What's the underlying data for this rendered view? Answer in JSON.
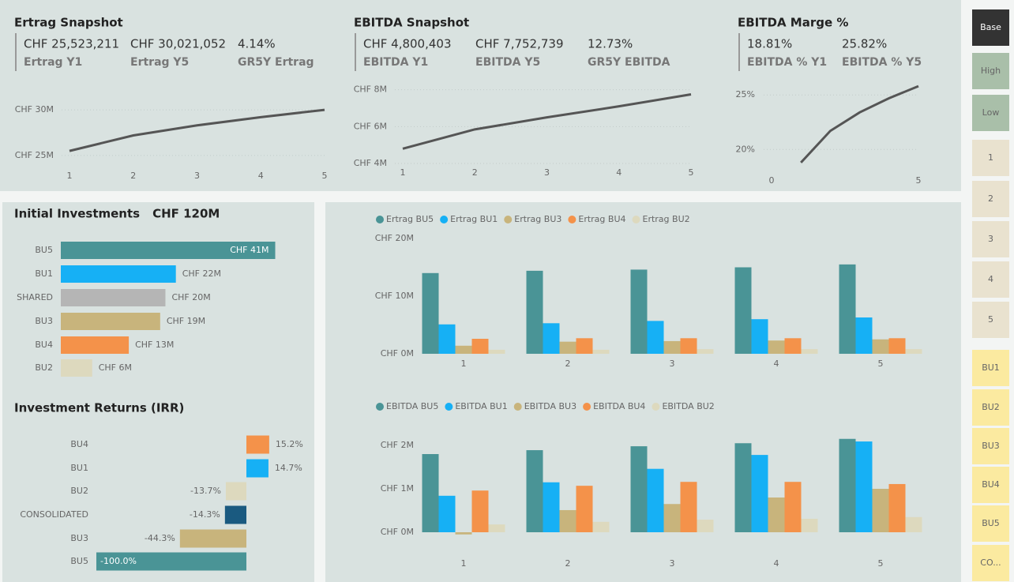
{
  "kpi_cards": [
    {
      "title": "Ertrag Snapshot",
      "items": [
        {
          "value": "CHF 25,523,211",
          "label": "Ertrag Y1"
        },
        {
          "value": "CHF 30,021,052",
          "label": "Ertrag Y5"
        },
        {
          "value": "4.14%",
          "label": "GR5Y Ertrag"
        }
      ]
    },
    {
      "title": "EBITDA Snapshot",
      "items": [
        {
          "value": "CHF 4,800,403",
          "label": "EBITDA Y1"
        },
        {
          "value": "CHF 7,752,739",
          "label": "EBITDA Y5"
        },
        {
          "value": "12.73%",
          "label": "GR5Y EBITDA"
        }
      ]
    },
    {
      "title": "EBITDA Marge %",
      "items": [
        {
          "value": "18.81%",
          "label": "EBITDA % Y1"
        },
        {
          "value": "25.82%",
          "label": "EBITDA % Y5"
        }
      ]
    }
  ],
  "chart_data": [
    {
      "type": "line",
      "x": [
        1,
        2,
        3,
        4,
        5
      ],
      "values": [
        25.5,
        27.2,
        28.3,
        29.2,
        30.0
      ],
      "color": "#555555",
      "xlim": [
        1,
        5
      ],
      "xticks": [
        1,
        2,
        3,
        4,
        5
      ],
      "ylim": [
        24.3,
        32
      ],
      "yticks": [
        {
          "value": 25,
          "label": "CHF 25M"
        },
        {
          "value": 30,
          "label": "CHF 30M"
        }
      ],
      "grid": true
    },
    {
      "type": "line",
      "x": [
        1,
        2,
        3,
        4,
        5
      ],
      "values": [
        4.8,
        5.85,
        6.5,
        7.1,
        7.75
      ],
      "color": "#555555",
      "xlim": [
        1,
        5
      ],
      "xticks": [
        1,
        2,
        3,
        4,
        5
      ],
      "ylim": [
        4,
        8.2
      ],
      "yticks": [
        {
          "value": 4,
          "label": "CHF 4M"
        },
        {
          "value": 6,
          "label": "CHF 6M"
        },
        {
          "value": 8,
          "label": "CHF 8M"
        }
      ],
      "grid": true
    },
    {
      "type": "line",
      "x": [
        1,
        2,
        3,
        4,
        5
      ],
      "values": [
        18.8,
        21.7,
        23.4,
        24.7,
        25.8
      ],
      "color": "#555555",
      "xlim": [
        0,
        5
      ],
      "xticks": [
        0,
        5
      ],
      "ylim": [
        18.5,
        26.1
      ],
      "yticks": [
        {
          "value": 20,
          "label": "20%"
        },
        {
          "value": 25,
          "label": "25%"
        }
      ],
      "grid": true
    },
    {
      "type": "hbar",
      "title": "Initial Investments",
      "subtitle": "CHF 120M",
      "categories": [
        "BU5",
        "BU1",
        "SHARED",
        "BU3",
        "BU4",
        "BU2"
      ],
      "values": [
        41,
        22,
        20,
        19,
        13,
        6
      ],
      "value_labels": [
        "CHF 41M",
        "CHF 22M",
        "CHF 20M",
        "CHF 19M",
        "CHF 13M",
        "CHF 6M"
      ],
      "colors": [
        "#4a9496",
        "#16b0f5",
        "#b5b5b5",
        "#c8b47c",
        "#f4924a",
        "#ddd9be"
      ],
      "xlim": [
        0,
        45
      ]
    },
    {
      "type": "hbar",
      "title": "Investment Returns (IRR)",
      "categories": [
        "BU4",
        "BU1",
        "BU2",
        "CONSOLIDATED",
        "BU3",
        "BU5"
      ],
      "values": [
        15.2,
        14.7,
        -13.7,
        -14.3,
        -44.3,
        -100
      ],
      "value_labels": [
        "15.2%",
        "14.7%",
        "-13.7%",
        "-14.3%",
        "-44.3%",
        "-100.0%"
      ],
      "colors": [
        "#f4924a",
        "#16b0f5",
        "#ddd9be",
        "#1a5a80",
        "#c8b47c",
        "#4a9496"
      ],
      "xlim": [
        -100,
        20
      ]
    },
    {
      "type": "bar",
      "categories": [
        "1",
        "2",
        "3",
        "4",
        "5"
      ],
      "series": [
        {
          "name": "Ertrag BU5",
          "color": "#4a9496",
          "values": [
            14.0,
            14.4,
            14.6,
            15.0,
            15.5
          ]
        },
        {
          "name": "Ertrag BU1",
          "color": "#16b0f5",
          "values": [
            5.1,
            5.3,
            5.7,
            6.0,
            6.3
          ]
        },
        {
          "name": "Ertrag BU3",
          "color": "#c8b47c",
          "values": [
            1.4,
            2.1,
            2.2,
            2.3,
            2.5
          ]
        },
        {
          "name": "Ertrag BU4",
          "color": "#f4924a",
          "values": [
            2.6,
            2.7,
            2.7,
            2.7,
            2.7
          ]
        },
        {
          "name": "Ertrag BU2",
          "color": "#ddd9be",
          "values": [
            0.7,
            0.7,
            0.8,
            0.8,
            0.8
          ]
        }
      ],
      "ylim": [
        0,
        20
      ],
      "yticks": [
        {
          "value": 0,
          "label": "CHF 0M"
        },
        {
          "value": 10,
          "label": "CHF 10M"
        },
        {
          "value": 20,
          "label": "CHF 20M"
        }
      ],
      "grid": false
    },
    {
      "type": "bar",
      "categories": [
        "1",
        "2",
        "3",
        "4",
        "5"
      ],
      "series": [
        {
          "name": "EBITDA BU5",
          "color": "#4a9496",
          "values": [
            1.8,
            1.89,
            1.98,
            2.05,
            2.15
          ]
        },
        {
          "name": "EBITDA BU1",
          "color": "#16b0f5",
          "values": [
            0.84,
            1.15,
            1.46,
            1.78,
            2.09
          ]
        },
        {
          "name": "EBITDA BU3",
          "color": "#c8b47c",
          "values": [
            -0.05,
            0.51,
            0.65,
            0.8,
            1.0
          ]
        },
        {
          "name": "EBITDA BU4",
          "color": "#f4924a",
          "values": [
            0.96,
            1.07,
            1.16,
            1.16,
            1.11
          ]
        },
        {
          "name": "EBITDA BU2",
          "color": "#ddd9be",
          "values": [
            0.18,
            0.24,
            0.29,
            0.31,
            0.35
          ]
        }
      ],
      "ylim": [
        -0.1,
        2.2
      ],
      "yticks": [
        {
          "value": 0,
          "label": "CHF 0M"
        },
        {
          "value": 1,
          "label": "CHF 1M"
        },
        {
          "value": 2,
          "label": "CHF 2M"
        }
      ],
      "grid": false
    }
  ],
  "slicer": {
    "buttons": [
      {
        "label": "Base",
        "color": "#333333"
      },
      {
        "label": "High",
        "color": "#a9bfa9"
      },
      {
        "label": "Low",
        "color": "#a9bfa9"
      },
      {
        "label": "1",
        "color": "#e9e2cf"
      },
      {
        "label": "2",
        "color": "#e9e2cf"
      },
      {
        "label": "3",
        "color": "#e9e2cf"
      },
      {
        "label": "4",
        "color": "#e9e2cf"
      },
      {
        "label": "5",
        "color": "#e9e2cf"
      },
      {
        "label": "BU1",
        "color": "#fbeaa0"
      },
      {
        "label": "BU2",
        "color": "#fbeaa0"
      },
      {
        "label": "BU3",
        "color": "#fbeaa0"
      },
      {
        "label": "BU4",
        "color": "#fbeaa0"
      },
      {
        "label": "BU5",
        "color": "#fbeaa0"
      },
      {
        "label": "CO...",
        "color": "#fbeaa0"
      }
    ]
  }
}
